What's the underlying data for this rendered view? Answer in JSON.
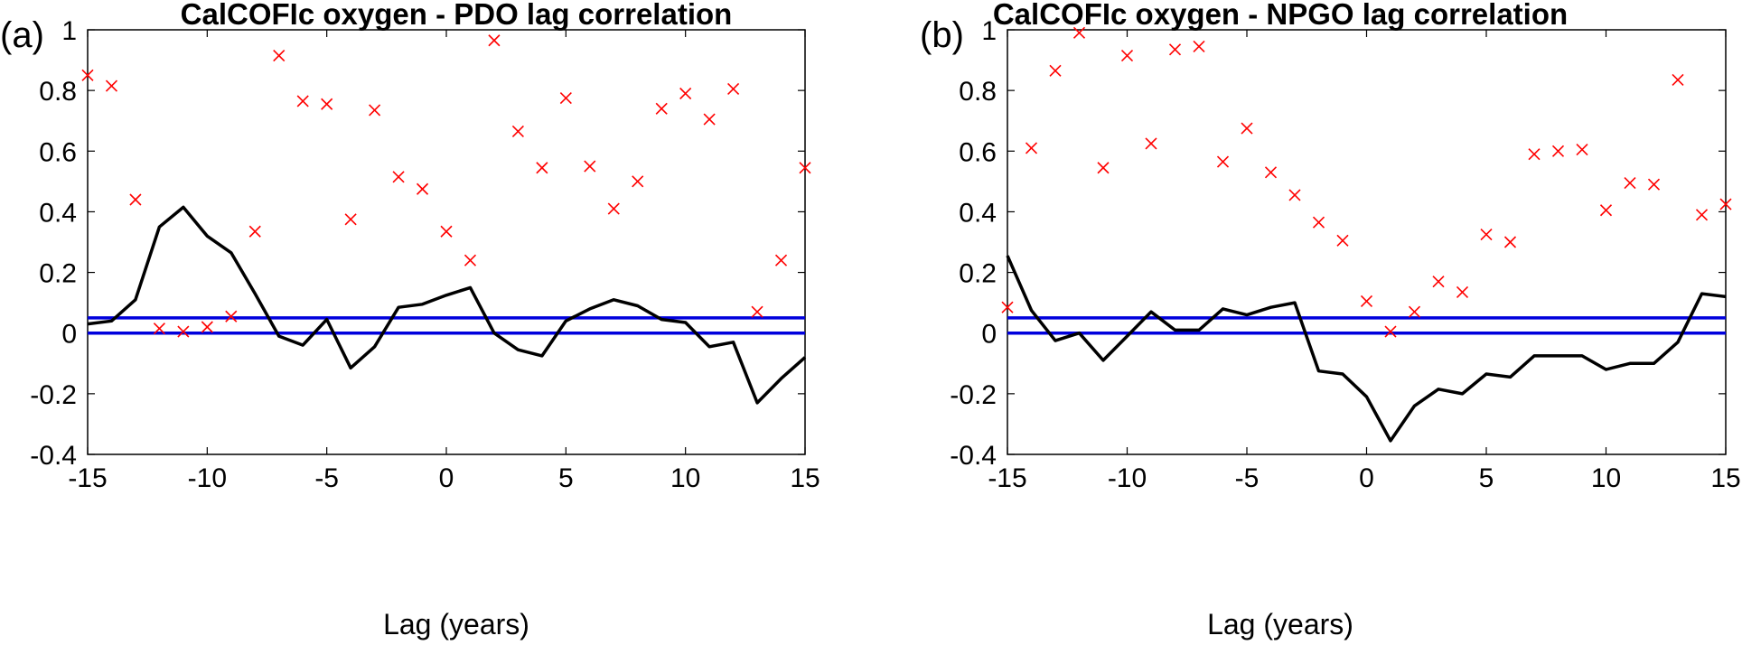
{
  "colors": {
    "correlation": "#000000",
    "significance_lines": "#0000dd",
    "pvalue_markers": "#ff0000",
    "axes": "#000000"
  },
  "chart_data": [
    {
      "type": "line",
      "panel_label": "(a)",
      "title": "CalCOFIc oxygen - PDO lag correlation",
      "xlabel": "Lag (years)",
      "ylabel": "",
      "xlim": [
        -15,
        15
      ],
      "ylim": [
        -0.4,
        1
      ],
      "xticks": [
        -15,
        -10,
        -5,
        0,
        5,
        10,
        15
      ],
      "yticks": [
        -0.4,
        -0.2,
        0,
        0.2,
        0.4,
        0.6,
        0.8,
        1
      ],
      "xtick_labels": [
        "-15",
        "-10",
        "-5",
        "0",
        "5",
        "10",
        "15"
      ],
      "ytick_labels": [
        "-0.4",
        "-0.2",
        "0",
        "0.2",
        "0.4",
        "0.6",
        "0.8",
        "1"
      ],
      "hlines": [
        0,
        0.05
      ],
      "series": [
        {
          "name": "correlation",
          "style": "line",
          "x": [
            -15,
            -14,
            -13,
            -12,
            -11,
            -10,
            -9,
            -8,
            -7,
            -6,
            -5,
            -4,
            -3,
            -2,
            -1,
            0,
            1,
            2,
            3,
            4,
            5,
            6,
            7,
            8,
            9,
            10,
            11,
            12,
            13,
            14,
            15
          ],
          "values": [
            0.03,
            0.04,
            0.11,
            0.35,
            0.415,
            0.32,
            0.265,
            0.13,
            -0.01,
            -0.04,
            0.045,
            -0.115,
            -0.045,
            0.085,
            0.095,
            0.125,
            0.15,
            0.0,
            -0.055,
            -0.075,
            0.04,
            0.08,
            0.11,
            0.09,
            0.045,
            0.035,
            -0.045,
            -0.03,
            -0.23,
            -0.15,
            -0.08
          ]
        },
        {
          "name": "p-value",
          "style": "marker-x",
          "x": [
            -15,
            -14,
            -13,
            -12,
            -11,
            -10,
            -9,
            -8,
            -7,
            -6,
            -5,
            -4,
            -3,
            -2,
            -1,
            0,
            1,
            2,
            3,
            4,
            5,
            6,
            7,
            8,
            9,
            10,
            11,
            12,
            13,
            14,
            15
          ],
          "values": [
            0.85,
            0.815,
            0.44,
            0.015,
            0.005,
            0.02,
            0.055,
            0.335,
            0.915,
            0.765,
            0.755,
            0.375,
            0.735,
            0.515,
            0.475,
            0.335,
            0.24,
            0.965,
            0.665,
            0.545,
            0.775,
            0.55,
            0.41,
            0.5,
            0.74,
            0.79,
            0.705,
            0.805,
            0.07,
            0.24,
            0.545
          ]
        }
      ]
    },
    {
      "type": "line",
      "panel_label": "(b)",
      "title": "CalCOFIc oxygen - NPGO lag correlation",
      "xlabel": "Lag (years)",
      "ylabel": "",
      "xlim": [
        -15,
        15
      ],
      "ylim": [
        -0.4,
        1
      ],
      "xticks": [
        -15,
        -10,
        -5,
        0,
        5,
        10,
        15
      ],
      "yticks": [
        -0.4,
        -0.2,
        0,
        0.2,
        0.4,
        0.6,
        0.8,
        1
      ],
      "xtick_labels": [
        "-15",
        "-10",
        "-5",
        "0",
        "5",
        "10",
        "15"
      ],
      "ytick_labels": [
        "-0.4",
        "-0.2",
        "0",
        "0.2",
        "0.4",
        "0.6",
        "0.8",
        "1"
      ],
      "hlines": [
        0,
        0.05
      ],
      "series": [
        {
          "name": "correlation",
          "style": "line",
          "x": [
            -15,
            -14,
            -13,
            -12,
            -11,
            -10,
            -9,
            -8,
            -7,
            -6,
            -5,
            -4,
            -3,
            -2,
            -1,
            0,
            1,
            2,
            3,
            4,
            5,
            6,
            7,
            8,
            9,
            10,
            11,
            12,
            13,
            14,
            15
          ],
          "values": [
            0.255,
            0.075,
            -0.025,
            0.0,
            -0.09,
            -0.01,
            0.07,
            0.01,
            0.01,
            0.08,
            0.06,
            0.085,
            0.1,
            -0.125,
            -0.135,
            -0.21,
            -0.355,
            -0.24,
            -0.185,
            -0.2,
            -0.135,
            -0.145,
            -0.075,
            -0.075,
            -0.075,
            -0.12,
            -0.1,
            -0.1,
            -0.03,
            0.13,
            0.12
          ]
        },
        {
          "name": "p-value",
          "style": "marker-x",
          "x": [
            -15,
            -14,
            -13,
            -12,
            -11,
            -10,
            -9,
            -8,
            -7,
            -6,
            -5,
            -4,
            -3,
            -2,
            -1,
            0,
            1,
            2,
            3,
            4,
            5,
            6,
            7,
            8,
            9,
            10,
            11,
            12,
            13,
            14,
            15
          ],
          "values": [
            0.085,
            0.61,
            0.865,
            0.99,
            0.545,
            0.915,
            0.625,
            0.935,
            0.945,
            0.565,
            0.675,
            0.53,
            0.455,
            0.365,
            0.305,
            0.105,
            0.005,
            0.07,
            0.17,
            0.135,
            0.325,
            0.3,
            0.59,
            0.6,
            0.605,
            0.405,
            0.495,
            0.49,
            0.835,
            0.39,
            0.425
          ]
        }
      ]
    }
  ]
}
